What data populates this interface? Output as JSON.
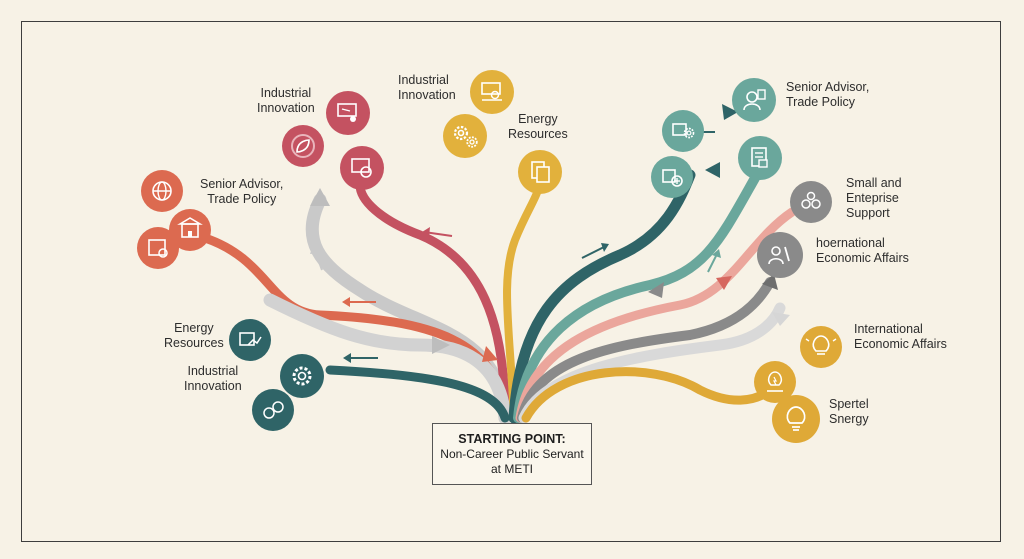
{
  "start": {
    "title": "STARTING POINT:",
    "line1": "Non-Career Public Servant",
    "line2": "at METI"
  },
  "labels": {
    "industrial_innovation_top": [
      "Industrial",
      "Innovation"
    ],
    "senior_advisor_left": [
      "Senior Advisor,",
      "Trade Policy"
    ],
    "industrial_innovation_center": [
      "Industrial",
      "Innovation"
    ],
    "energy_resources_center": [
      "Energy",
      "Resources"
    ],
    "senior_advisor_right": [
      "Senior Advisor,",
      "Trade Policy"
    ],
    "small_enterprise": [
      "Small and",
      "Enteprise",
      "Support"
    ],
    "international_upper": [
      "hoernational",
      "Economic Affairs"
    ],
    "energy_resources_left": [
      "Energy",
      "Resources"
    ],
    "industrial_innovation_left": [
      "Industrial",
      "Innovation"
    ],
    "international_lower": [
      "International",
      "Economic Affairs"
    ],
    "spertel_snergy": [
      "Spertel",
      "Snergy"
    ]
  },
  "colors": {
    "background": "#f7f2e6",
    "red": "#c45261",
    "coral": "#dc6a50",
    "gold": "#e2b13c",
    "teal_dark": "#2f6467",
    "teal": "#6aa79c",
    "pink": "#eba69c",
    "grey": "#8a8a8a",
    "light_grey": "#c9c9c9",
    "amber": "#dfa937"
  },
  "icons": [
    "globe-icon",
    "building-icon",
    "certificate-icon",
    "presentation-icon",
    "leaf-icon",
    "monitor-person-icon",
    "gears-icon",
    "person-desk-icon",
    "documents-icon",
    "handshake-icon",
    "person-graduation-icon",
    "card-gears-icon",
    "chart-gears-icon",
    "document-checklist-icon",
    "people-network-icon",
    "person-wrench-icon",
    "lightbulb-icon",
    "bulb-hand-icon",
    "lightbulb-icon",
    "chart-card-icon",
    "gear-icon",
    "coins-icon"
  ]
}
